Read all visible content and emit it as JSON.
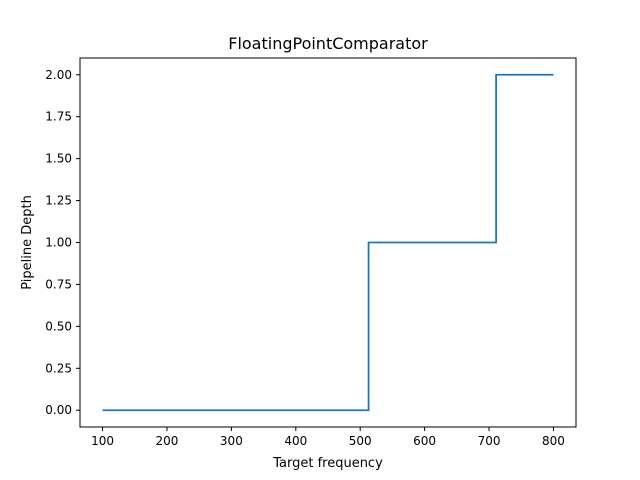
{
  "chart_data": {
    "type": "line",
    "step": "post",
    "title": "FloatingPointComparator",
    "xlabel": "Target frequency",
    "ylabel": "Pipeline Depth",
    "x": [
      100,
      513,
      711,
      800
    ],
    "y": [
      0.0,
      1.0,
      2.0,
      2.0
    ],
    "xlim": [
      65,
      835
    ],
    "ylim": [
      -0.1,
      2.1
    ],
    "xticks": [
      100,
      200,
      300,
      400,
      500,
      600,
      700,
      800
    ],
    "xtick_labels": [
      "100",
      "200",
      "300",
      "400",
      "500",
      "600",
      "700",
      "800"
    ],
    "yticks": [
      0.0,
      0.25,
      0.5,
      0.75,
      1.0,
      1.25,
      1.5,
      1.75,
      2.0
    ],
    "ytick_labels": [
      "0.00",
      "0.25",
      "0.50",
      "0.75",
      "1.00",
      "1.25",
      "1.50",
      "1.75",
      "2.00"
    ],
    "grid": false,
    "legend": "none",
    "line_color": "#1f77b4"
  }
}
